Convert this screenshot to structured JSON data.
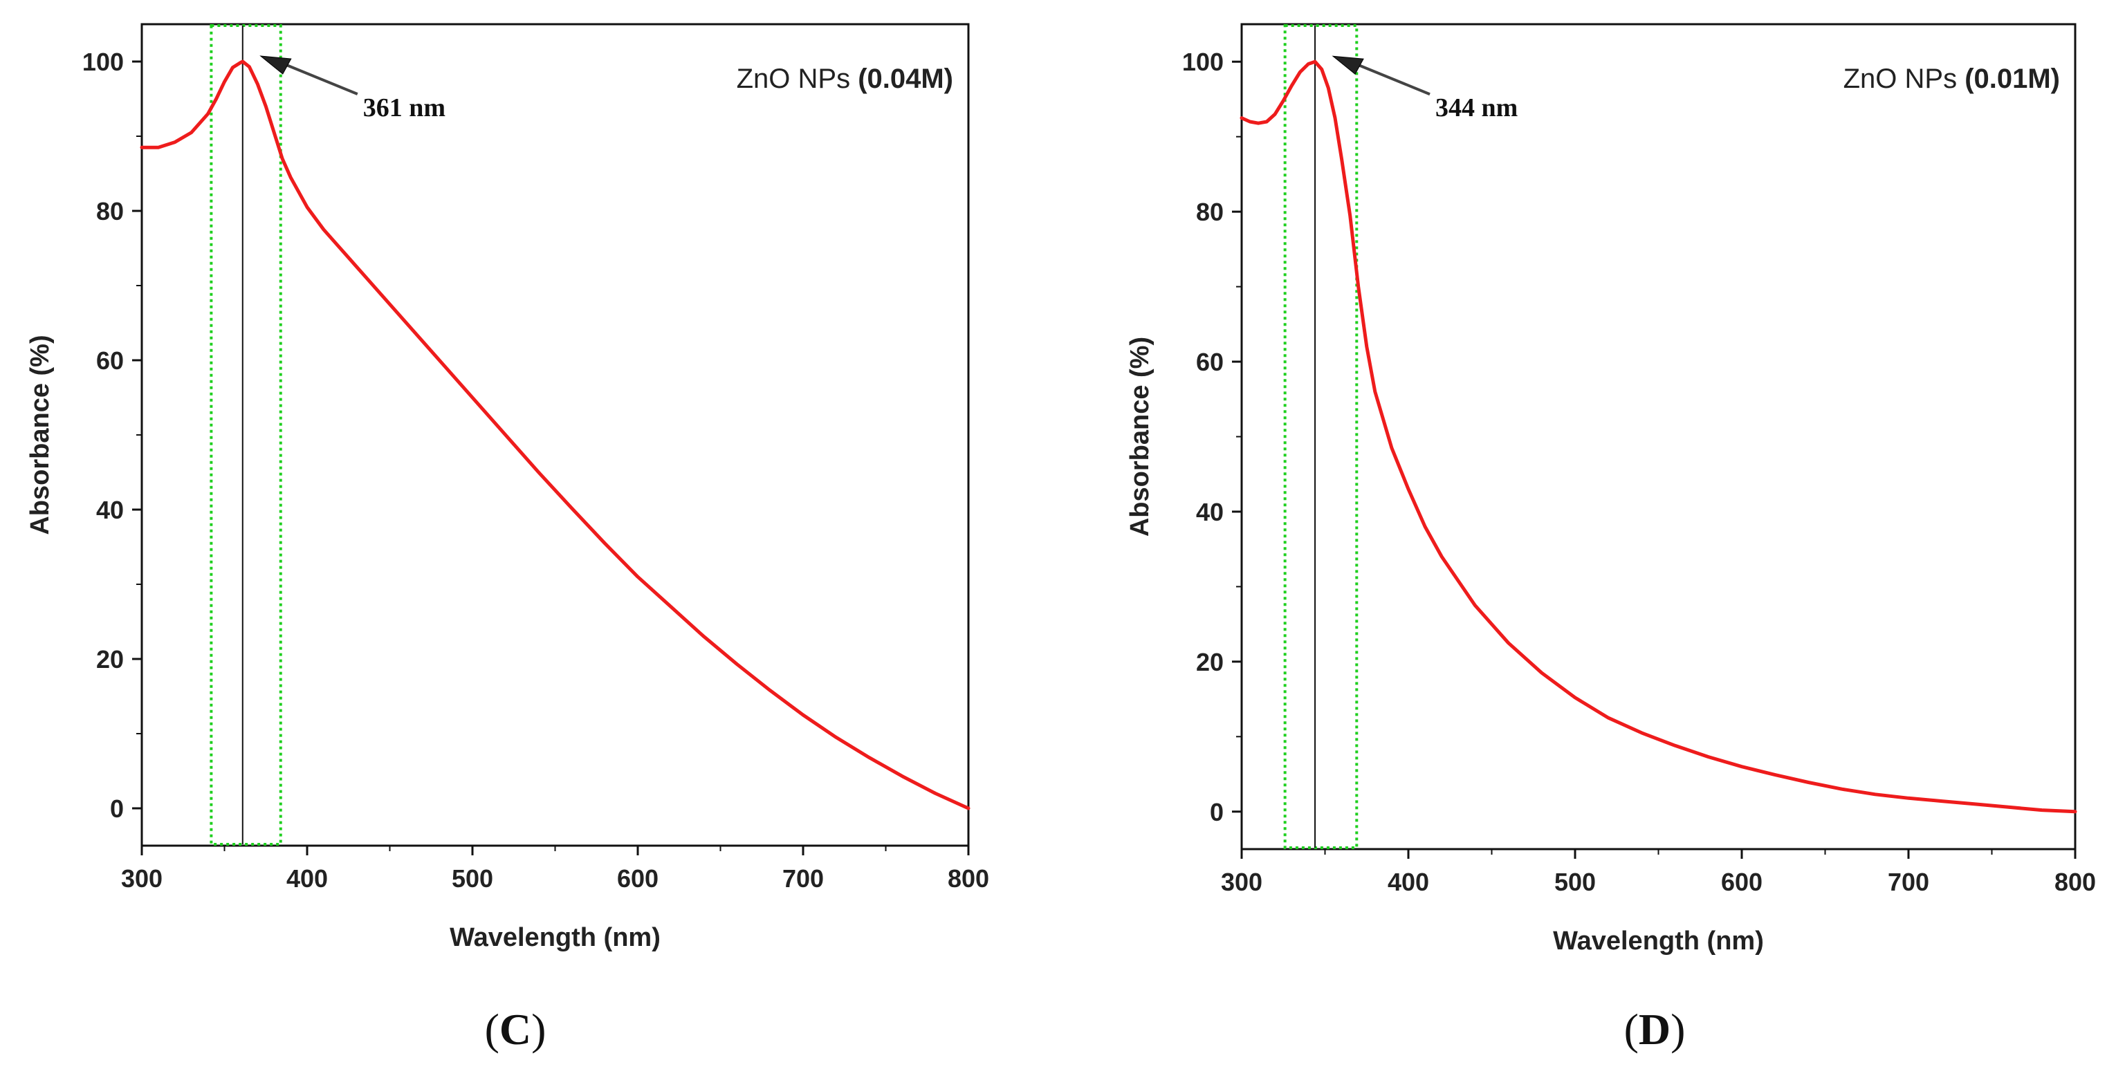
{
  "figure": {
    "panel_labels": [
      "C",
      "D"
    ]
  },
  "colors": {
    "curve": "#ee1c1c",
    "box": "#1fcf1f",
    "axis": "#111111",
    "arrow": "#444444"
  },
  "chart_data": [
    {
      "type": "line",
      "panel_label": "C",
      "title": "",
      "legend_prefix": "ZnO NPs",
      "legend_bold": "(0.04M)",
      "legend_position": "top-right",
      "xlabel": "Wavelength (nm)",
      "ylabel": "Absorbance (%)",
      "xlim": [
        300,
        800
      ],
      "ylim": [
        -5,
        105
      ],
      "xticks": [
        300,
        400,
        500,
        600,
        700,
        800
      ],
      "yticks": [
        0,
        20,
        40,
        60,
        80,
        100
      ],
      "peak_annotation": "361 nm",
      "peak_x": 361,
      "peak_y": 100,
      "highlight_x_range": [
        342,
        384
      ],
      "series": [
        {
          "name": "ZnO NPs (0.04M)",
          "x": [
            300,
            310,
            320,
            330,
            340,
            345,
            350,
            355,
            360,
            361,
            365,
            370,
            375,
            380,
            385,
            390,
            400,
            410,
            420,
            440,
            460,
            480,
            500,
            520,
            540,
            560,
            580,
            600,
            620,
            640,
            660,
            680,
            700,
            720,
            740,
            760,
            780,
            800
          ],
          "y": [
            88.5,
            88.5,
            89.2,
            90.5,
            93.0,
            95.0,
            97.3,
            99.2,
            99.9,
            100,
            99.3,
            97.0,
            94.0,
            90.5,
            87.0,
            84.5,
            80.5,
            77.5,
            75.0,
            70.0,
            65.0,
            60.0,
            55.0,
            50.0,
            45.0,
            40.2,
            35.5,
            31.0,
            27.0,
            23.0,
            19.3,
            15.8,
            12.5,
            9.5,
            6.8,
            4.3,
            2.0,
            0.0
          ]
        }
      ]
    },
    {
      "type": "line",
      "panel_label": "D",
      "title": "",
      "legend_prefix": "ZnO NPs",
      "legend_bold": "(0.01M)",
      "legend_position": "top-right",
      "xlabel": "Wavelength (nm)",
      "ylabel": "Absorbance (%)",
      "xlim": [
        300,
        800
      ],
      "ylim": [
        -5,
        105
      ],
      "xticks": [
        300,
        400,
        500,
        600,
        700,
        800
      ],
      "yticks": [
        0,
        20,
        40,
        60,
        80,
        100
      ],
      "peak_annotation": "344 nm",
      "peak_x": 344,
      "peak_y": 100,
      "highlight_x_range": [
        326,
        369
      ],
      "series": [
        {
          "name": "ZnO NPs (0.01M)",
          "x": [
            300,
            305,
            310,
            315,
            320,
            325,
            330,
            335,
            340,
            344,
            348,
            352,
            356,
            360,
            365,
            370,
            375,
            380,
            390,
            400,
            410,
            420,
            440,
            460,
            480,
            500,
            520,
            540,
            560,
            580,
            600,
            620,
            640,
            660,
            680,
            700,
            720,
            740,
            760,
            780,
            800
          ],
          "y": [
            92.5,
            92.0,
            91.8,
            92.0,
            93.0,
            94.8,
            96.8,
            98.6,
            99.7,
            100,
            99.0,
            96.5,
            92.5,
            87.0,
            79.5,
            70.0,
            62.0,
            56.0,
            48.5,
            43.0,
            38.0,
            34.0,
            27.5,
            22.5,
            18.5,
            15.2,
            12.5,
            10.5,
            8.8,
            7.3,
            6.0,
            4.9,
            3.9,
            3.0,
            2.3,
            1.8,
            1.4,
            1.0,
            0.6,
            0.2,
            0.0
          ]
        }
      ]
    }
  ]
}
